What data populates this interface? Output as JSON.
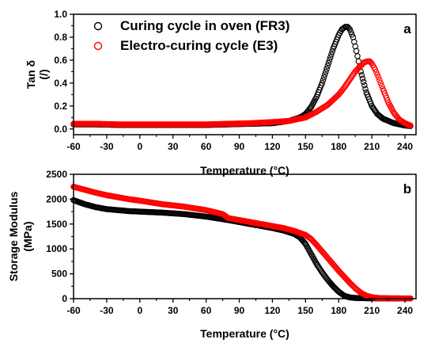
{
  "chart_data": [
    {
      "type": "scatter",
      "panel_label": "a",
      "xlabel": "Temperature (°C)",
      "ylabel": "Tan δ",
      "ylabel_unit": "(/)",
      "xlim": [
        -60,
        250
      ],
      "ylim": [
        -0.05,
        1.0
      ],
      "xticks": [
        -60,
        -30,
        0,
        30,
        60,
        90,
        120,
        150,
        180,
        210,
        240
      ],
      "yticks": [
        0.0,
        0.2,
        0.4,
        0.6,
        0.8,
        1.0
      ],
      "ytick_labels": [
        "0.0",
        "0.2",
        "0.4",
        "0.6",
        "0.8",
        "1.0"
      ],
      "legend_position": "top-left",
      "series": [
        {
          "name": "Curing cycle in oven (FR3)",
          "color": "#000000",
          "x": [
            -60,
            -40,
            -20,
            0,
            20,
            40,
            60,
            80,
            100,
            120,
            135,
            145,
            150,
            155,
            160,
            165,
            170,
            175,
            180,
            183,
            186,
            188,
            190,
            193,
            196,
            200,
            205,
            210,
            215,
            220,
            225,
            230,
            235,
            240,
            245
          ],
          "y": [
            0.04,
            0.04,
            0.035,
            0.035,
            0.035,
            0.035,
            0.035,
            0.04,
            0.045,
            0.05,
            0.07,
            0.1,
            0.13,
            0.19,
            0.28,
            0.4,
            0.55,
            0.7,
            0.82,
            0.87,
            0.89,
            0.89,
            0.87,
            0.8,
            0.68,
            0.5,
            0.32,
            0.2,
            0.13,
            0.09,
            0.07,
            0.05,
            0.04,
            0.03,
            0.025
          ]
        },
        {
          "name": "Electro-curing cycle (E3)",
          "color": "#ff0000",
          "x": [
            -60,
            -40,
            -20,
            0,
            20,
            40,
            60,
            80,
            100,
            120,
            135,
            145,
            150,
            160,
            170,
            180,
            185,
            190,
            195,
            200,
            203,
            206,
            208,
            210,
            213,
            216,
            220,
            225,
            230,
            235,
            240,
            245
          ],
          "y": [
            0.045,
            0.045,
            0.04,
            0.04,
            0.04,
            0.04,
            0.04,
            0.045,
            0.05,
            0.06,
            0.07,
            0.09,
            0.1,
            0.15,
            0.21,
            0.3,
            0.36,
            0.43,
            0.5,
            0.55,
            0.58,
            0.59,
            0.59,
            0.57,
            0.52,
            0.45,
            0.35,
            0.23,
            0.14,
            0.08,
            0.05,
            0.03
          ]
        }
      ]
    },
    {
      "type": "scatter",
      "panel_label": "b",
      "xlabel": "Temperature (°C)",
      "ylabel": "Storage Modulus",
      "ylabel_unit": "(MPa)",
      "xlim": [
        -60,
        250
      ],
      "ylim": [
        0,
        2500
      ],
      "xticks": [
        -60,
        -30,
        0,
        30,
        60,
        90,
        120,
        150,
        180,
        210,
        240
      ],
      "yticks": [
        0,
        500,
        1000,
        1500,
        2000,
        2500
      ],
      "ytick_labels": [
        "0",
        "500",
        "1000",
        "1500",
        "2000",
        "2500"
      ],
      "series": [
        {
          "name": "Curing cycle in oven (FR3)",
          "color": "#000000",
          "x": [
            -60,
            -50,
            -40,
            -30,
            -20,
            -10,
            0,
            20,
            40,
            60,
            80,
            100,
            120,
            130,
            140,
            145,
            150,
            155,
            160,
            165,
            170,
            175,
            180,
            185,
            190,
            195,
            200,
            210,
            220,
            230,
            240,
            245
          ],
          "y": [
            1980,
            1900,
            1840,
            1800,
            1780,
            1760,
            1750,
            1730,
            1700,
            1650,
            1580,
            1500,
            1420,
            1370,
            1300,
            1230,
            1100,
            900,
            700,
            530,
            380,
            250,
            140,
            60,
            25,
            15,
            10,
            8,
            6,
            5,
            5,
            5
          ]
        },
        {
          "name": "Electro-curing cycle (E3)",
          "color": "#ff0000",
          "x": [
            -60,
            -50,
            -40,
            -30,
            -20,
            -10,
            0,
            20,
            40,
            60,
            75,
            80,
            100,
            120,
            130,
            140,
            150,
            155,
            160,
            165,
            170,
            175,
            180,
            185,
            190,
            195,
            200,
            205,
            210,
            215,
            220,
            230,
            240,
            245
          ],
          "y": [
            2250,
            2190,
            2130,
            2080,
            2040,
            2000,
            1970,
            1900,
            1850,
            1780,
            1700,
            1620,
            1540,
            1460,
            1420,
            1360,
            1280,
            1200,
            1080,
            950,
            820,
            690,
            560,
            440,
            320,
            210,
            120,
            60,
            30,
            15,
            10,
            8,
            6,
            5
          ]
        }
      ]
    }
  ]
}
